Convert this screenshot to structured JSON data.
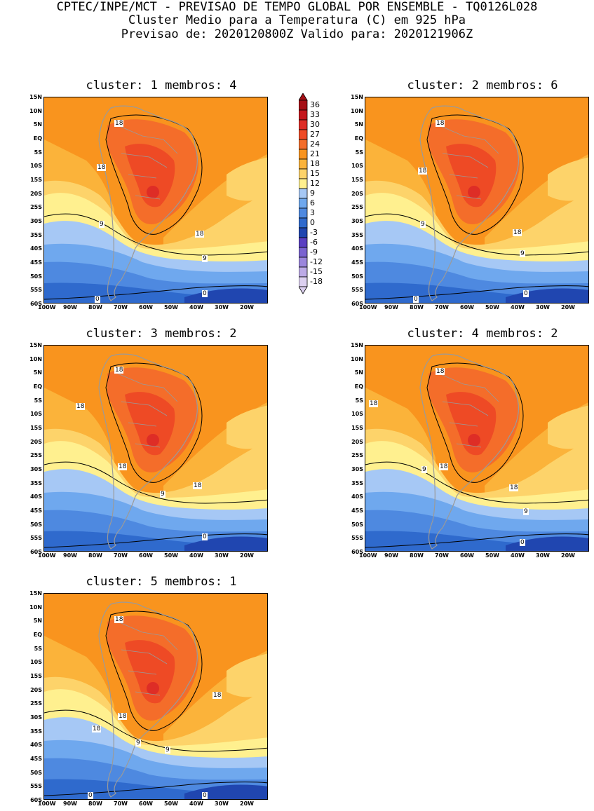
{
  "header": {
    "line1": "CPTEC/INPE/MCT - PREVISAO DE TEMPO GLOBAL POR ENSEMBLE - TQ0126L028",
    "line2": "Cluster Medio para a Temperatura (C) em 925 hPa",
    "line3": "Previsao de: 2020120800Z   Valido para: 2020121906Z"
  },
  "panels": [
    {
      "title": "cluster: 1   membros: 4",
      "contour_labels": [
        "18",
        "18",
        "9",
        "18",
        "9",
        "0",
        "0"
      ]
    },
    {
      "title": "cluster: 2   membros: 6",
      "contour_labels": [
        "18",
        "18",
        "9",
        "18",
        "9",
        "0",
        "0"
      ]
    },
    {
      "title": "cluster: 3   membros: 2",
      "contour_labels": [
        "18",
        "18",
        "18",
        "9",
        "18",
        "0"
      ]
    },
    {
      "title": "cluster: 4   membros: 2",
      "contour_labels": [
        "18",
        "18",
        "9",
        "18",
        "18",
        "9",
        "0"
      ]
    },
    {
      "title": "cluster: 5   membros: 1",
      "contour_labels": [
        "18",
        "18",
        "18",
        "9",
        "18",
        "9",
        "0",
        "0"
      ]
    }
  ],
  "lat_ticks": [
    "15N",
    "10N",
    "5N",
    "EQ",
    "5S",
    "10S",
    "15S",
    "20S",
    "25S",
    "30S",
    "35S",
    "40S",
    "45S",
    "50S",
    "55S",
    "60S"
  ],
  "lon_ticks": [
    "100W",
    "90W",
    "80W",
    "70W",
    "60W",
    "50W",
    "40W",
    "30W",
    "20W"
  ],
  "colorbar": {
    "levels": [
      "36",
      "33",
      "30",
      "27",
      "24",
      "21",
      "18",
      "15",
      "12",
      "9",
      "6",
      "3",
      "0",
      "-3",
      "-6",
      "-9",
      "-12",
      "-15",
      "-18"
    ],
    "colors": [
      "#a50f15",
      "#c4161c",
      "#de2d26",
      "#ee4a25",
      "#f46d2a",
      "#f9941e",
      "#fbb33a",
      "#fdd36a",
      "#fff08f",
      "#a6c8f5",
      "#6fa8ee",
      "#4e89e0",
      "#2f6acd",
      "#2046b0",
      "#5a3fc2",
      "#7a63d0",
      "#9b86dc",
      "#bcaae6",
      "#dcd0f0"
    ]
  },
  "colors": {
    "coast": "#9a9a9a",
    "contour": "#000000"
  }
}
